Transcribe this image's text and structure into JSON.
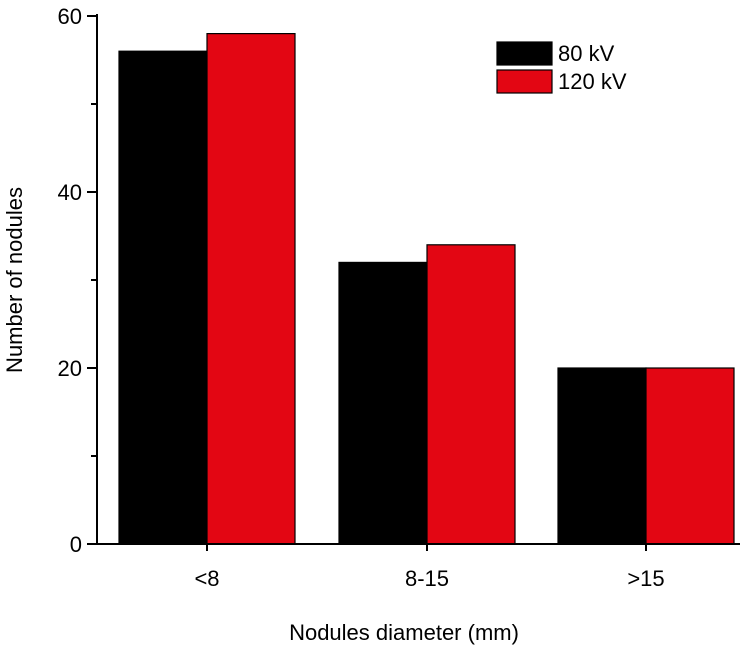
{
  "chart_data": {
    "type": "bar",
    "title": "",
    "xlabel": "Nodules diameter (mm)",
    "ylabel": "Number of nodules",
    "categories": [
      "<8",
      "8-15",
      ">15"
    ],
    "series": [
      {
        "name": "80 kV",
        "values": [
          56,
          32,
          20
        ],
        "color": "#000000"
      },
      {
        "name": "120 kV",
        "values": [
          58,
          34,
          20
        ],
        "color": "#e30613"
      }
    ],
    "ylim": [
      0,
      60
    ],
    "yticks": [
      0,
      20,
      40,
      60
    ],
    "ytick_labels": [
      "0",
      "20",
      "40",
      "60"
    ],
    "grid": false,
    "legend_position": "top-right"
  }
}
